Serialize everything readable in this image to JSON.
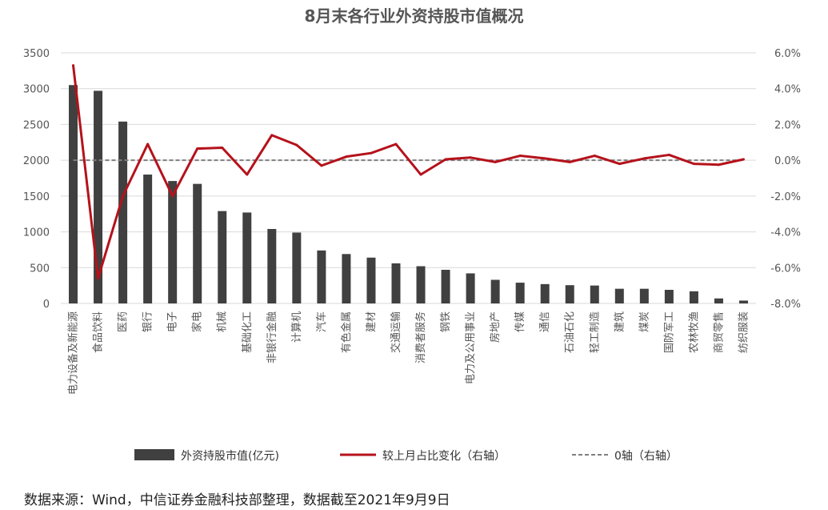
{
  "title": "8月末各行业外资持股市值概况",
  "source": "数据来源：Wind，中信证券金融科技部整理，数据截至2021年9月9日",
  "chart_data": {
    "type": "bar",
    "categories": [
      "电力设备及新能源",
      "食品饮料",
      "医药",
      "银行",
      "电子",
      "家电",
      "机械",
      "基础化工",
      "非银行金融",
      "计算机",
      "汽车",
      "有色金属",
      "建材",
      "交通运输",
      "消费者服务",
      "钢铁",
      "电力及公用事业",
      "房地产",
      "传媒",
      "通信",
      "石油石化",
      "轻工制造",
      "建筑",
      "煤炭",
      "国防军工",
      "农林牧渔",
      "商贸零售",
      "纺织服装"
    ],
    "series": [
      {
        "name": "外资持股市值(亿元)",
        "type": "bar",
        "axis": "left",
        "color": "#404040",
        "values": [
          3050,
          2970,
          2540,
          1800,
          1710,
          1670,
          1290,
          1270,
          1040,
          990,
          740,
          690,
          640,
          560,
          520,
          470,
          420,
          330,
          290,
          270,
          255,
          250,
          205,
          205,
          190,
          170,
          70,
          40
        ]
      },
      {
        "name": "较上月占比变化（右轴）",
        "type": "line",
        "axis": "right",
        "color": "#B5121B",
        "values": [
          5.3,
          -6.6,
          -2.0,
          0.9,
          -2.0,
          0.65,
          0.7,
          -0.8,
          1.4,
          0.85,
          -0.3,
          0.2,
          0.4,
          0.9,
          -0.8,
          0.05,
          0.15,
          -0.1,
          0.25,
          0.1,
          -0.1,
          0.25,
          -0.2,
          0.1,
          0.3,
          -0.2,
          -0.25,
          0.05
        ]
      },
      {
        "name": "0轴（右轴）",
        "type": "line",
        "axis": "right",
        "color": "#7F7F7F",
        "dash": true,
        "values": [
          0,
          0,
          0,
          0,
          0,
          0,
          0,
          0,
          0,
          0,
          0,
          0,
          0,
          0,
          0,
          0,
          0,
          0,
          0,
          0,
          0,
          0,
          0,
          0,
          0,
          0,
          0,
          0
        ]
      }
    ],
    "y_left": {
      "ylim": [
        0,
        3500
      ],
      "ticks": [
        "0",
        "500",
        "1000",
        "1500",
        "2000",
        "2500",
        "3000",
        "3500"
      ]
    },
    "y_right": {
      "ylim": [
        -8,
        6
      ],
      "ticks": [
        "-8.0%",
        "-6.0%",
        "-4.0%",
        "-2.0%",
        "0.0%",
        "2.0%",
        "4.0%",
        "6.0%"
      ]
    },
    "grid": "horizontal",
    "legend": "bottom"
  }
}
